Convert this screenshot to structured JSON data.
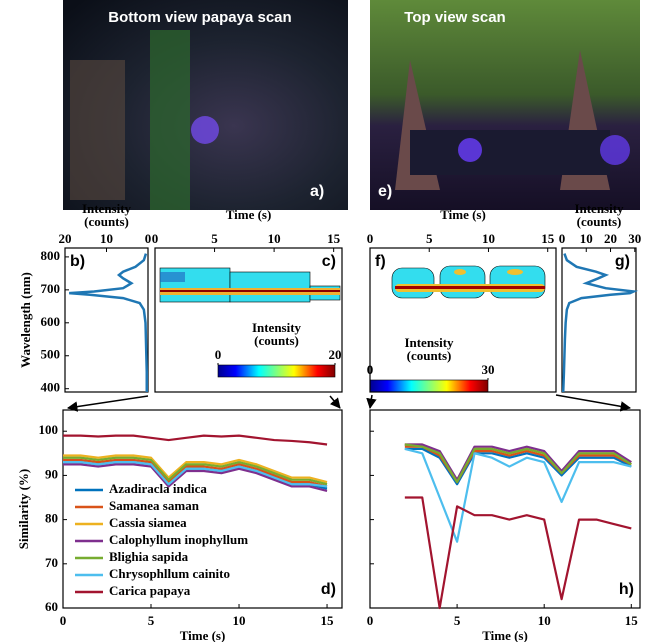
{
  "photos": [
    {
      "title": "Bottom view papaya scan",
      "label": "a)"
    },
    {
      "title": "Top view scan",
      "label": "e)"
    }
  ],
  "chart_data": [
    {
      "type": "spectrum",
      "panel_label": "b)",
      "xlabel": "Intensity (counts)",
      "ylabel": "Wavelength (nm)",
      "xlim": [
        20,
        0
      ],
      "xticks": [
        20,
        10,
        0
      ],
      "ylim": [
        390,
        827
      ],
      "yticks": [
        400,
        500,
        600,
        700,
        800
      ],
      "color": "#1f77b4",
      "wavelengths": [
        390,
        450,
        500,
        550,
        600,
        640,
        660,
        675,
        685,
        690,
        695,
        705,
        720,
        735,
        745,
        755,
        770,
        790,
        810
      ],
      "values": [
        0.3,
        0.3,
        0.4,
        0.5,
        0.6,
        1,
        2,
        6,
        14,
        19,
        13,
        6,
        4,
        6,
        7,
        6,
        3,
        1,
        0.5
      ]
    },
    {
      "type": "contour",
      "panel_label": "c)",
      "xlabel": "Time (s)",
      "xlim": [
        0,
        15.7
      ],
      "xticks": [
        0,
        5,
        10,
        15
      ],
      "colorbar_label": "Intensity (counts)",
      "colorbar_ticks": [
        0,
        20
      ]
    },
    {
      "type": "contour",
      "panel_label": "f)",
      "xlabel": "Time (s)",
      "xlim": [
        0,
        15.7
      ],
      "xticks": [
        0,
        5,
        10,
        15
      ],
      "colorbar_label": "Intensity (counts)",
      "colorbar_ticks": [
        0,
        30
      ]
    },
    {
      "type": "spectrum",
      "panel_label": "g)",
      "xlabel": "Intensity (counts)",
      "xlim": [
        0,
        30.5
      ],
      "xticks": [
        0,
        10,
        20,
        30
      ],
      "ylim": [
        390,
        827
      ],
      "color": "#1f77b4",
      "wavelengths": [
        390,
        450,
        500,
        550,
        600,
        640,
        660,
        675,
        685,
        690,
        695,
        705,
        720,
        735,
        745,
        755,
        770,
        790,
        810
      ],
      "values": [
        0.5,
        0.8,
        1,
        1.2,
        1.5,
        2,
        3,
        8,
        20,
        28,
        29.5,
        18,
        10,
        15,
        18,
        14,
        6,
        2,
        1
      ]
    },
    {
      "type": "line",
      "panel_label": "d)",
      "xlabel": "Time (s)",
      "ylabel": "Similarity (%)",
      "xlim": [
        0,
        15.85
      ],
      "xticks": [
        0,
        5,
        10,
        15
      ],
      "ylim": [
        60,
        104.8
      ],
      "yticks": [
        60,
        70,
        80,
        90,
        100
      ],
      "legend": "lower left",
      "x": [
        0,
        1,
        2,
        3,
        4,
        5,
        6,
        7,
        8,
        9,
        10,
        11,
        12,
        13,
        14,
        15
      ],
      "series": [
        {
          "name": "Azadiracla indica",
          "color": "#0072bd",
          "values": [
            93,
            93,
            92.5,
            93,
            93,
            92.5,
            88,
            91.5,
            91.5,
            91,
            92,
            91,
            89.5,
            88,
            88,
            87
          ]
        },
        {
          "name": "Samanea saman",
          "color": "#d95319",
          "values": [
            93.5,
            93.5,
            93,
            93.5,
            93.5,
            93,
            88.5,
            92,
            92,
            91.5,
            92.5,
            91.5,
            90,
            88.5,
            88.5,
            87.5
          ]
        },
        {
          "name": "Cassia siamea",
          "color": "#edb120",
          "values": [
            94.5,
            94.5,
            94,
            94.5,
            94.5,
            94,
            89.5,
            93,
            93,
            92.5,
            93.5,
            92.5,
            91,
            89.5,
            89.5,
            88.5
          ]
        },
        {
          "name": "Calophyllum inophyllum",
          "color": "#7e2f8e",
          "values": [
            92.5,
            92.5,
            92,
            92.5,
            92.5,
            92,
            87.5,
            91,
            91,
            90.5,
            91.5,
            90.5,
            89,
            87.5,
            87.5,
            86.5
          ]
        },
        {
          "name": "Blighia sapida",
          "color": "#77ac30",
          "values": [
            94,
            94,
            93.5,
            94,
            94,
            93.5,
            89,
            92.5,
            92.5,
            92,
            93,
            92,
            90.5,
            89,
            89,
            88
          ]
        },
        {
          "name": "Chrysophllum cainito",
          "color": "#4dbeee",
          "values": [
            93,
            93,
            92.5,
            93,
            93,
            92.5,
            88,
            91.5,
            91.5,
            91,
            92,
            91,
            89.5,
            88,
            88,
            87.5
          ]
        },
        {
          "name": "Carica papaya",
          "color": "#a2142f",
          "values": [
            99,
            99,
            98.8,
            99,
            99,
            98.5,
            98,
            98.5,
            99,
            98.8,
            99,
            98.5,
            98,
            97.8,
            97.5,
            97
          ]
        }
      ]
    },
    {
      "type": "line",
      "panel_label": "h)",
      "xlabel": "Time (s)",
      "xlim": [
        0,
        15.5
      ],
      "xticks": [
        0,
        5,
        10,
        15
      ],
      "ylim": [
        60,
        104.8
      ],
      "yticks": [
        60,
        70,
        80,
        90,
        100
      ],
      "ytick_labels": false,
      "x": [
        0,
        1,
        2,
        3,
        4,
        5,
        6,
        7,
        8,
        9,
        10,
        11,
        12,
        13,
        14,
        15
      ],
      "series": [
        {
          "color": "#0072bd",
          "values": [
            93,
            null,
            96,
            96,
            94,
            88,
            95,
            95,
            94,
            95,
            94,
            90,
            94,
            94,
            94,
            92
          ]
        },
        {
          "color": "#d95319",
          "values": [
            93.5,
            null,
            96.5,
            96.5,
            94.5,
            88.5,
            95.5,
            95.5,
            94.5,
            95.5,
            94.5,
            90.5,
            94.5,
            94.5,
            94.5,
            92.5
          ]
        },
        {
          "color": "#edb120",
          "values": [
            94,
            null,
            97,
            97,
            95,
            89,
            96,
            96,
            95,
            96,
            95,
            91,
            95,
            95,
            95,
            93
          ]
        },
        {
          "color": "#7e2f8e",
          "values": [
            94.5,
            null,
            97,
            97,
            95.5,
            89,
            96.5,
            96.5,
            95.5,
            96.5,
            95.5,
            91,
            95.5,
            95.5,
            95.5,
            93
          ]
        },
        {
          "color": "#77ac30",
          "values": [
            93.5,
            null,
            97,
            96.5,
            95,
            88.5,
            96,
            96,
            95,
            96,
            95,
            90.5,
            95,
            95,
            95,
            92.5
          ]
        },
        {
          "color": "#4dbeee",
          "values": [
            92,
            null,
            96,
            95,
            85,
            75,
            95,
            94,
            92,
            94,
            93,
            84,
            93,
            93,
            93,
            92
          ]
        },
        {
          "color": "#a2142f",
          "values": [
            85,
            null,
            85,
            85,
            60,
            83,
            81,
            81,
            80,
            81,
            80,
            62,
            80,
            80,
            79,
            78
          ]
        }
      ]
    }
  ]
}
